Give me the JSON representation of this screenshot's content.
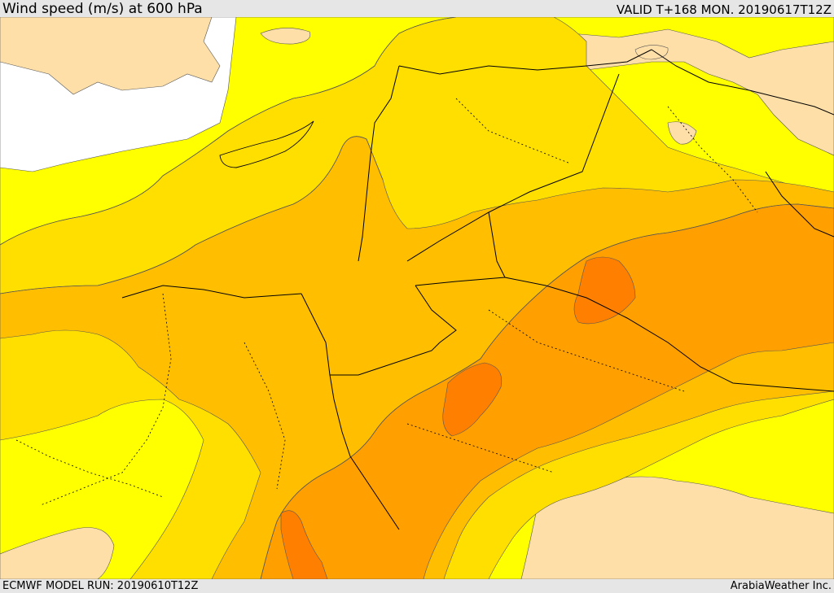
{
  "header": {
    "title": "Wind speed (m/s) at 600 hPa",
    "valid": "VALID T+168 MON. 20190617T12Z"
  },
  "footer": {
    "model_run": "ECMWF MODEL RUN: 20190610T12Z",
    "credit": "ArabiaWeather Inc."
  },
  "colors": {
    "sea": "#ffffff",
    "lt5": "#ffdfa8",
    "b5_10": "#ffff00",
    "b10_15": "#ffdf00",
    "b15_20": "#ffbf00",
    "b20_25": "#ff9f00",
    "b25_30": "#ff8000",
    "border": "#000000",
    "contour": "#555555"
  }
}
